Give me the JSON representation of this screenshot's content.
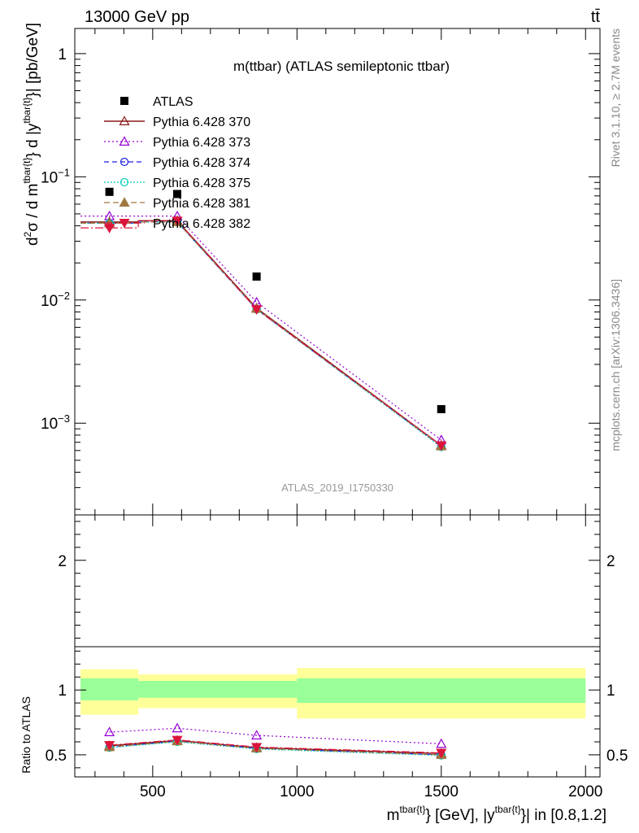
{
  "header": {
    "energy_label": "13000 GeV pp",
    "process_label": "tt̄",
    "plot_title": "m(ttbar) (ATLAS semileptonic ttbar)",
    "analysis_id": "ATLAS_2019_I1750330",
    "side_rivet": "Rivet 3.1.10, ≥ 2.7M events",
    "side_mcplots": "mcplots.cern.ch [arXiv:1306.3436]"
  },
  "colors": {
    "ATLAS": "#000000",
    "Pythia 6.428 370": "#8b1a1a",
    "Pythia 6.428 373": "#9400d3",
    "Pythia 6.428 374": "#1e1ee6",
    "Pythia 6.428 375": "#00ccbb",
    "Pythia 6.428 381": "#a07840",
    "Pythia 6.428 382": "#dc143c",
    "band_inner": "#99ff99",
    "band_outer": "#ffff99"
  },
  "chart_data": [
    {
      "type": "line",
      "title": "m(ttbar) (ATLAS semileptonic ttbar)",
      "ylabel": "d²σ / d m^{tbar{t}} d |y^{tbar{t}}| [pb/GeV]",
      "xlabel": "m^{tbar{t}} [GeV], |y^{tbar{t}}| in [0.8,1.2]",
      "yscale": "log",
      "ylim": [
        0.00018,
        1.6
      ],
      "xlim": [
        230,
        2050
      ],
      "yticks": [
        {
          "value": 0.001,
          "base": "10",
          "exp": "−3"
        },
        {
          "value": 0.01,
          "base": "10",
          "exp": "−2"
        },
        {
          "value": 0.1,
          "base": "10",
          "exp": "−1"
        },
        {
          "value": 1,
          "base": "1",
          "exp": ""
        }
      ],
      "bin_edges": [
        250,
        450,
        700,
        1000,
        2000
      ],
      "x": [
        350,
        585,
        860,
        1500
      ],
      "legend_position": "top-left",
      "series": [
        {
          "name": "ATLAS",
          "marker": "square",
          "values": [
            0.0755,
            0.0725,
            0.0155,
            0.0013
          ]
        },
        {
          "name": "Pythia 6.428 370",
          "marker": "triangle-open",
          "values": [
            0.043,
            0.044,
            0.0086,
            0.00066
          ]
        },
        {
          "name": "Pythia 6.428 373",
          "marker": "triangle-open",
          "values": [
            0.048,
            0.048,
            0.0096,
            0.00073
          ]
        },
        {
          "name": "Pythia 6.428 374",
          "marker": "circle-open",
          "values": [
            0.042,
            0.043,
            0.0084,
            0.00065
          ]
        },
        {
          "name": "Pythia 6.428 375",
          "marker": "circle-open",
          "values": [
            0.042,
            0.043,
            0.0084,
            0.00064
          ]
        },
        {
          "name": "Pythia 6.428 381",
          "marker": "triangle-filled",
          "values": [
            0.042,
            0.043,
            0.0085,
            0.00065
          ]
        },
        {
          "name": "Pythia 6.428 382",
          "marker": "triangle-down-filled",
          "values": [
            0.0385,
            0.044,
            0.0084,
            0.00066
          ]
        }
      ]
    },
    {
      "type": "line",
      "ylabel": "Ratio to ATLAS",
      "xlabel": "m^{tbar{t}} [GeV], |y^{tbar{t}}| in [0.8,1.2]",
      "ylim": [
        0.33,
        2.35
      ],
      "xlim": [
        230,
        2050
      ],
      "yticks": [
        0.5,
        1,
        2
      ],
      "xticks": [
        500,
        1000,
        1500,
        2000
      ],
      "reference_line": 1,
      "bands": [
        {
          "x0": 250,
          "x1": 450,
          "inner": [
            0.92,
            1.09
          ],
          "outer": [
            0.81,
            1.16
          ]
        },
        {
          "x0": 450,
          "x1": 1000,
          "inner": [
            0.94,
            1.07
          ],
          "outer": [
            0.86,
            1.12
          ]
        },
        {
          "x0": 1000,
          "x1": 2000,
          "inner": [
            0.9,
            1.09
          ],
          "outer": [
            0.78,
            1.17
          ]
        }
      ],
      "x": [
        350,
        585,
        860,
        1500
      ],
      "series": [
        {
          "name": "Pythia 6.428 370",
          "values": [
            0.57,
            0.61,
            0.555,
            0.51
          ]
        },
        {
          "name": "Pythia 6.428 373",
          "values": [
            0.675,
            0.705,
            0.65,
            0.585
          ]
        },
        {
          "name": "Pythia 6.428 374",
          "values": [
            0.56,
            0.605,
            0.55,
            0.5
          ]
        },
        {
          "name": "Pythia 6.428 375",
          "values": [
            0.555,
            0.6,
            0.545,
            0.495
          ]
        },
        {
          "name": "Pythia 6.428 381",
          "values": [
            0.56,
            0.605,
            0.55,
            0.5
          ]
        },
        {
          "name": "Pythia 6.428 382",
          "values": [
            0.575,
            0.615,
            0.56,
            0.515
          ]
        }
      ]
    }
  ]
}
